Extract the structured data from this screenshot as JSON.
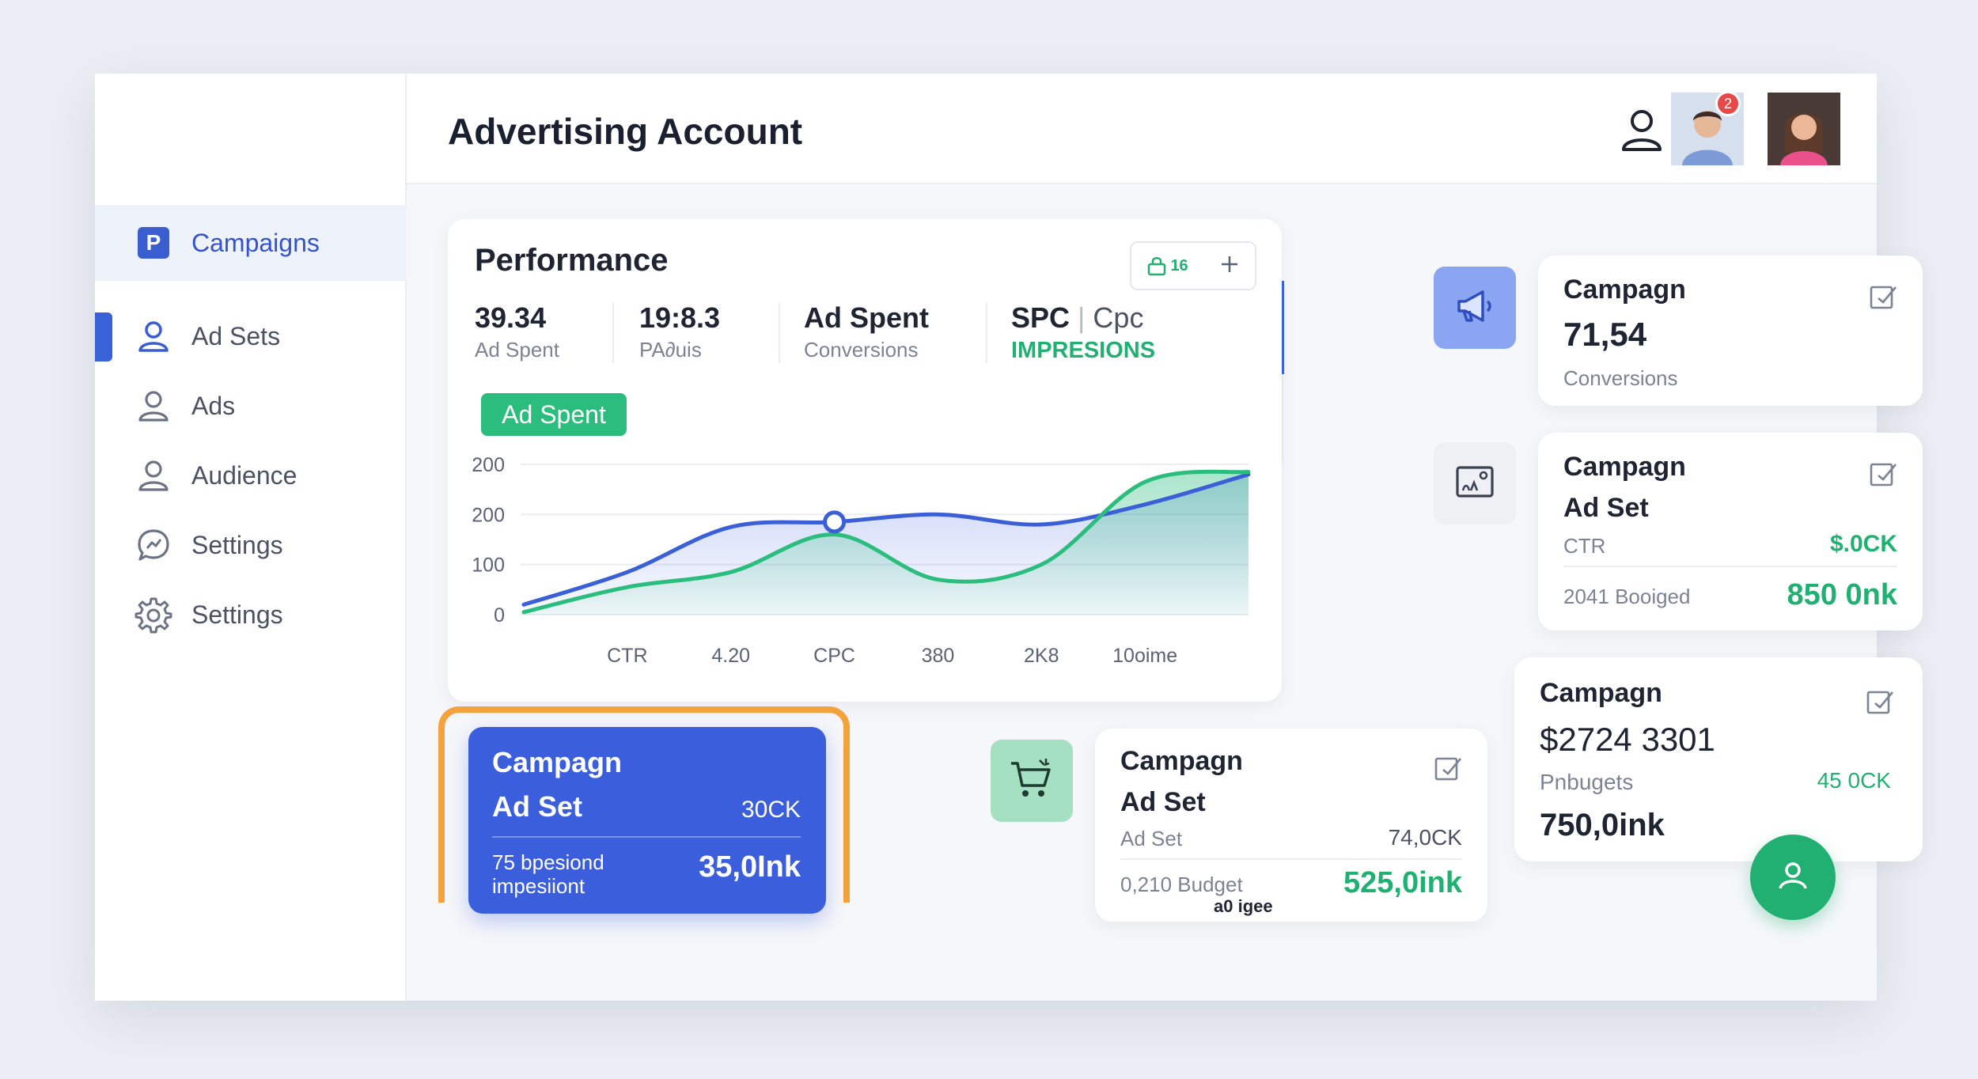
{
  "header": {
    "title": "Advertising Account",
    "notification_count": "2"
  },
  "sidebar": {
    "items": [
      {
        "label": "Campaigns",
        "icon": "p-logo-icon"
      },
      {
        "label": "Ad Sets",
        "icon": "user-icon"
      },
      {
        "label": "Ads",
        "icon": "user-icon"
      },
      {
        "label": "Audience",
        "icon": "user-icon"
      },
      {
        "label": "Settings",
        "icon": "chat-icon"
      },
      {
        "label": "Settings",
        "icon": "gear-icon"
      }
    ]
  },
  "performance": {
    "title": "Performance",
    "tools_label": "16",
    "metrics": [
      {
        "value": "39.34",
        "label": "Ad Spent"
      },
      {
        "value": "19:8.3",
        "label": "PA∂uis"
      },
      {
        "value": "Ad Spent",
        "label": "Conversions"
      },
      {
        "value": "SPC",
        "value2": "Cpc",
        "label": "IMPRESIONS"
      }
    ],
    "pill": "Ad Spent"
  },
  "chart_data": {
    "type": "area",
    "categories": [
      "",
      "CTR",
      "4.20",
      "CPC",
      "380",
      "2K8",
      "10oime",
      ""
    ],
    "y_tick_labels": [
      "200",
      "200",
      "100",
      "0"
    ],
    "ylim": [
      0,
      300
    ],
    "series": [
      {
        "values": [
          20,
          85,
          175,
          185,
          200,
          180,
          220,
          280
        ],
        "color": "#3b5fd6"
      },
      {
        "values": [
          5,
          55,
          85,
          160,
          70,
          100,
          265,
          285
        ],
        "color": "#2bbd7e"
      }
    ],
    "grid": true
  },
  "cards": {
    "c1": {
      "title": "Campagn",
      "value": "71,54",
      "label": "Conversions"
    },
    "c2": {
      "title": "Campagn",
      "sub": "Ad Set",
      "row1_label": "CTR",
      "row1_value": "$.0CK",
      "row2_label": "2041 Booiged",
      "row2_value": "850 0nk"
    },
    "c3": {
      "title": "Campagn",
      "value": "$2724 3301",
      "label": "Pnbugets",
      "label_value": "45 0CK",
      "value2": "750,0ink"
    },
    "blue": {
      "title": "Campagn",
      "sub": "Ad Set",
      "sub_value": "30CK",
      "line1": "75 bpesiond",
      "line2": "impesiiont",
      "big_value": "35,0Ink"
    },
    "c4": {
      "title": "Campagn",
      "sub": "Ad Set",
      "row1_label": "Ad Set",
      "row1_value": "74,0CK",
      "row2_label": "0,210 Budget",
      "row2_value": "525,0ink",
      "footnote": "a0 igee"
    }
  },
  "colors": {
    "accent_blue": "#3b5fdc",
    "accent_green": "#22b072",
    "selection_orange": "#f6a23c"
  }
}
